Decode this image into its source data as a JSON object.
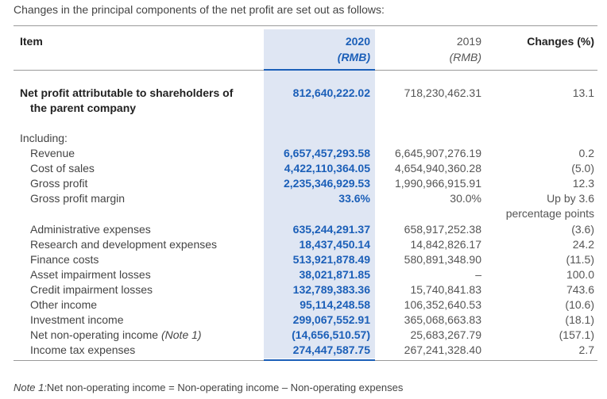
{
  "intro": "Changes in the principal components of the net profit are set out as follows:",
  "header": {
    "item": "Item",
    "y2020": "2020",
    "y2020_unit": "(RMB)",
    "y2019": "2019",
    "y2019_unit": "(RMB)",
    "changes": "Changes (%)"
  },
  "net_profit": {
    "label_line1": "Net profit attributable to shareholders of",
    "label_line2": "the parent company",
    "v2020": "812,640,222.02",
    "v2019": "718,230,462.31",
    "change": "13.1"
  },
  "including": "Including:",
  "rows": [
    {
      "label": "Revenue",
      "v2020": "6,657,457,293.58",
      "v2019": "6,645,907,276.19",
      "change": "0.2"
    },
    {
      "label": "Cost of sales",
      "v2020": "4,422,110,364.05",
      "v2019": "4,654,940,360.28",
      "change": "(5.0)"
    },
    {
      "label": "Gross profit",
      "v2020": "2,235,346,929.53",
      "v2019": "1,990,966,915.91",
      "change": "12.3"
    },
    {
      "label": "Gross profit margin",
      "v2020": "33.6%",
      "v2019": "30.0%",
      "change": "Up by 3.6",
      "change2": "percentage points"
    },
    {
      "label": "Administrative expenses",
      "v2020": "635,244,291.37",
      "v2019": "658,917,252.38",
      "change": "(3.6)"
    },
    {
      "label": "Research and development expenses",
      "v2020": "18,437,450.14",
      "v2019": "14,842,826.17",
      "change": "24.2"
    },
    {
      "label": "Finance costs",
      "v2020": "513,921,878.49",
      "v2019": "580,891,348.90",
      "change": "(11.5)"
    },
    {
      "label": "Asset impairment losses",
      "v2020": "38,021,871.85",
      "v2019": "–",
      "change": "100.0"
    },
    {
      "label": "Credit impairment losses",
      "v2020": "132,789,383.36",
      "v2019": "15,740,841.83",
      "change": "743.6"
    },
    {
      "label": "Other income",
      "v2020": "95,114,248.58",
      "v2019": "106,352,640.53",
      "change": "(10.6)"
    },
    {
      "label": "Investment income",
      "v2020": "299,067,552.91",
      "v2019": "365,068,663.83",
      "change": "(18.1)"
    },
    {
      "label": "Net non-operating income",
      "label_note": "(Note 1)",
      "v2020": "(14,656,510.57)",
      "v2019": "25,683,267.79",
      "change": "(157.1)"
    },
    {
      "label": "Income tax expenses",
      "v2020": "274,447,587.75",
      "v2019": "267,241,328.40",
      "change": "2.7"
    }
  ],
  "note": {
    "prefix": "Note 1:",
    "text": "Net non-operating income = Non-operating income – Non-operating expenses"
  }
}
